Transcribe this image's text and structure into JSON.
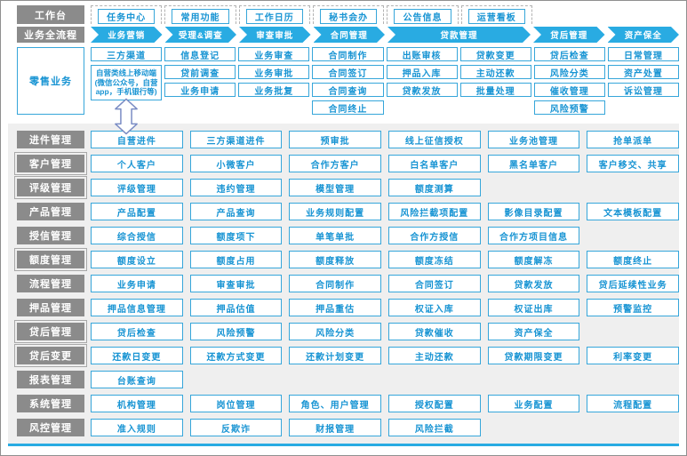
{
  "colors": {
    "accent_blue": "#29ABE2",
    "box_border_blue": "#36A6DA",
    "box_text_blue": "#1894D3",
    "header_gray": "#8B8B8B",
    "panel_gray": "#EFEFEF",
    "connector_outline": "#7A8CC4"
  },
  "workbench": {
    "label": "工作台",
    "items": [
      "任务中心",
      "常用功能",
      "工作日历",
      "秘书会办",
      "公告信息",
      "运营看板"
    ]
  },
  "process": {
    "label": "业务全流程",
    "steps": [
      {
        "label": "业务营销",
        "span": 1
      },
      {
        "label": "受理&调查",
        "span": 1
      },
      {
        "label": "审查审批",
        "span": 1
      },
      {
        "label": "合同管理",
        "span": 1
      },
      {
        "label": "贷款管理",
        "span": 2
      },
      {
        "label": "贷后管理",
        "span": 1
      },
      {
        "label": "资产保全",
        "span": 1
      }
    ]
  },
  "retail": {
    "label": "零售业务",
    "columns": [
      [
        "三方渠道",
        {
          "text": "自营类线上移动端(微信公众号，自营app，手机银行等)",
          "tall": true
        }
      ],
      [
        "信息登记",
        "贷前调查",
        "业务申请"
      ],
      [
        "业务审查",
        "业务审批",
        "业务批复"
      ],
      [
        "合同制作",
        "合同签订",
        "合同查询",
        "合同终止"
      ],
      [
        "出账审核",
        "押品入库",
        "贷款发放"
      ],
      [
        "贷款变更",
        "主动还款",
        "批量处理"
      ],
      [
        "贷后检查",
        "风险分类",
        "催收管理",
        "风险预警"
      ],
      [
        "日常管理",
        "资产处置",
        "诉讼管理"
      ]
    ]
  },
  "connector": {
    "icon": "up-down-arrow"
  },
  "modules": [
    {
      "label": "进件管理",
      "outlined": false,
      "items": [
        "自营进件",
        "三方渠道进件",
        "预审批",
        "线上征信授权",
        "业务池管理",
        "抢单派单"
      ]
    },
    {
      "label": "客户管理",
      "outlined": true,
      "items": [
        "个人客户",
        "小微客户",
        "合作方客户",
        "白名单客户",
        "黑名单客户",
        "客户移交、共享"
      ]
    },
    {
      "label": "评级管理",
      "outlined": true,
      "items": [
        "评级管理",
        "违约管理",
        "模型管理",
        "额度测算"
      ]
    },
    {
      "label": "产品管理",
      "outlined": false,
      "items": [
        "产品配置",
        "产品查询",
        "业务规则配置",
        "风险拦截项配置",
        "影像目录配置",
        "文本模板配置"
      ]
    },
    {
      "label": "授信管理",
      "outlined": false,
      "items": [
        "综合授信",
        "额度项下",
        "单笔单批",
        "合作方授信",
        "合作方项目信息"
      ]
    },
    {
      "label": "额度管理",
      "outlined": true,
      "items": [
        "额度设立",
        "额度占用",
        "额度释放",
        "额度冻结",
        "额度解冻",
        "额度终止"
      ]
    },
    {
      "label": "流程管理",
      "outlined": false,
      "items": [
        "业务申请",
        "审查审批",
        "合同制作",
        "合同签订",
        "贷款发放",
        "贷后延续性业务"
      ]
    },
    {
      "label": "押品管理",
      "outlined": false,
      "items": [
        "押品信息管理",
        "押品估值",
        "押品重估",
        "权证入库",
        "权证出库",
        "预警监控"
      ]
    },
    {
      "label": "贷后管理",
      "outlined": true,
      "items": [
        "贷后检查",
        "风险预警",
        "风险分类",
        "贷款催收",
        "资产保全"
      ]
    },
    {
      "label": "贷后变更",
      "outlined": true,
      "items": [
        "还款日变更",
        "还款方式变更",
        "还款计划变更",
        "主动还款",
        "贷款期限变更",
        "利率变更"
      ]
    },
    {
      "label": "报表管理",
      "outlined": false,
      "items": [
        "台账查询"
      ]
    },
    {
      "label": "系统管理",
      "outlined": false,
      "items": [
        "机构管理",
        "岗位管理",
        "角色、用户管理",
        "授权配置",
        "业务配置",
        "流程配置"
      ]
    },
    {
      "label": "风控管理",
      "outlined": false,
      "items": [
        "准入规则",
        "反欺诈",
        "财报管理",
        "风险拦截"
      ]
    }
  ]
}
